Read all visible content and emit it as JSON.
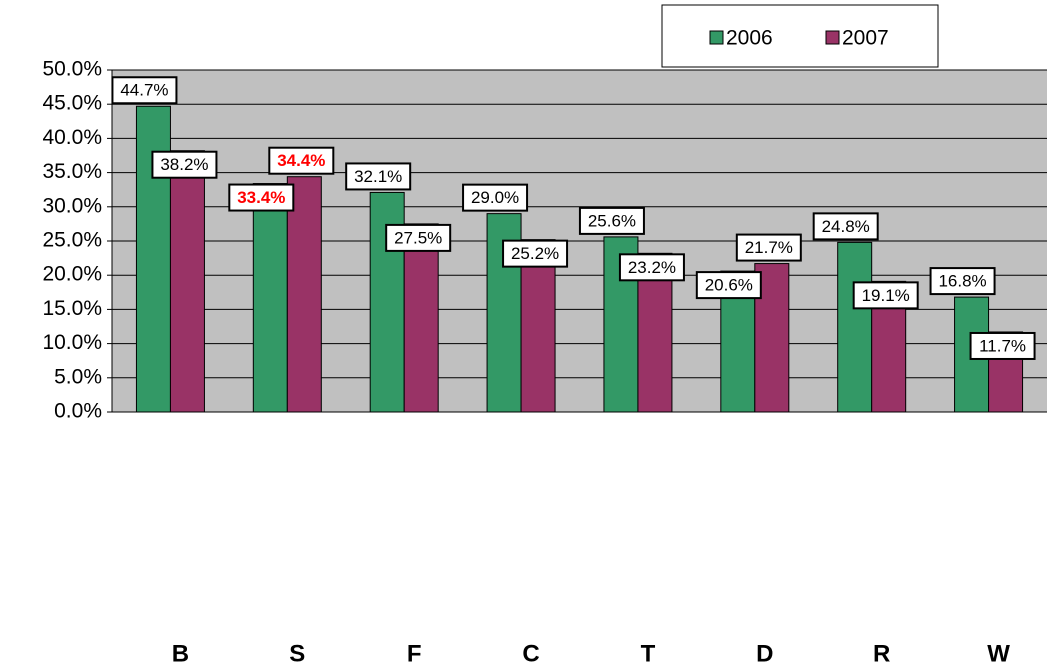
{
  "chart_data": {
    "type": "bar",
    "categories": [
      "B",
      "S",
      "F",
      "C",
      "T",
      "D",
      "R",
      "W"
    ],
    "series": [
      {
        "name": "2006",
        "color": "#339966",
        "values": [
          44.7,
          33.4,
          32.1,
          29.0,
          25.6,
          20.6,
          24.8,
          16.8
        ],
        "value_labels": [
          "44.7%",
          "33.4%",
          "32.1%",
          "29.0%",
          "25.6%",
          "20.6%",
          "24.8%",
          "16.8%"
        ],
        "value_label_colors": [
          "#000000",
          "#ff0000",
          "#000000",
          "#000000",
          "#000000",
          "#000000",
          "#000000",
          "#000000"
        ]
      },
      {
        "name": "2007",
        "color": "#993366",
        "values": [
          38.2,
          34.4,
          27.5,
          25.2,
          23.2,
          21.7,
          19.1,
          11.7
        ],
        "value_labels": [
          "38.2%",
          "34.4%",
          "27.5%",
          "25.2%",
          "23.2%",
          "21.7%",
          "19.1%",
          "11.7%"
        ],
        "value_label_colors": [
          "#000000",
          "#ff0000",
          "#000000",
          "#000000",
          "#000000",
          "#000000",
          "#000000",
          "#000000"
        ]
      }
    ],
    "ylim": [
      0,
      50
    ],
    "yticks": [
      {
        "value": 0,
        "label": "0.0%"
      },
      {
        "value": 5,
        "label": "5.0%"
      },
      {
        "value": 10,
        "label": "10.0%"
      },
      {
        "value": 15,
        "label": "15.0%"
      },
      {
        "value": 20,
        "label": "20.0%"
      },
      {
        "value": 25,
        "label": "25.0%"
      },
      {
        "value": 30,
        "label": "30.0%"
      },
      {
        "value": 35,
        "label": "35.0%"
      },
      {
        "value": 40,
        "label": "40.0%"
      },
      {
        "value": 45,
        "label": "45.0%"
      },
      {
        "value": 50,
        "label": "50.0%"
      }
    ],
    "grid": true,
    "legend": "top-right"
  }
}
